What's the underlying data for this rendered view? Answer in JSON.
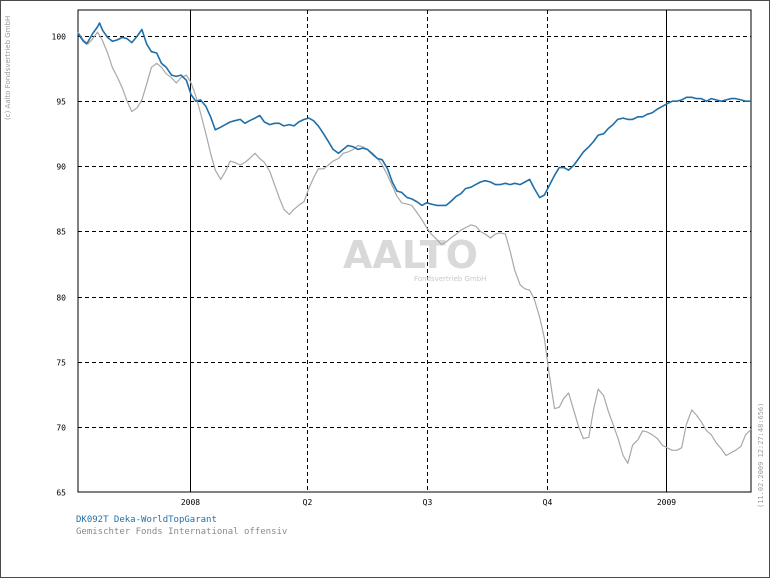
{
  "copyright_left": "(c) Aalto Fondsvertrieb GmbH",
  "timestamp_right": "(11.02.2009 12:27:48:656)",
  "watermark": {
    "logo": "AALTO",
    "sub": "Fondsvertrieb GmbH"
  },
  "legend": {
    "fund": "DK092T Deka-WorldTopGarant",
    "benchmark": "Gemischter Fonds International offensiv"
  },
  "colors": {
    "fund": "#1f6fa8",
    "benchmark": "#a8a8a8",
    "grid": "#000000"
  },
  "chart_data": {
    "type": "line",
    "title": "",
    "xlabel": "",
    "ylabel": "",
    "ylim": [
      65,
      102
    ],
    "yticks": [
      65,
      70,
      75,
      80,
      85,
      90,
      95,
      100
    ],
    "xlim": [
      0,
      100
    ],
    "xticks": [
      {
        "label": "2008",
        "x": 16.6
      },
      {
        "label": "Q2",
        "x": 34.0
      },
      {
        "label": "Q3",
        "x": 51.8
      },
      {
        "label": "Q4",
        "x": 69.7
      },
      {
        "label": "2009",
        "x": 87.4
      }
    ],
    "grid": true,
    "series": [
      {
        "name": "DK092T Deka-WorldTopGarant",
        "points": [
          [
            0,
            100.2
          ],
          [
            0.8,
            99.6
          ],
          [
            1.3,
            99.4
          ],
          [
            2.2,
            100.2
          ],
          [
            2.9,
            100.7
          ],
          [
            3.2,
            101.0
          ],
          [
            3.7,
            100.4
          ],
          [
            4.4,
            99.9
          ],
          [
            5.1,
            99.6
          ],
          [
            5.8,
            99.7
          ],
          [
            6.6,
            99.9
          ],
          [
            7.3,
            99.8
          ],
          [
            8.0,
            99.5
          ],
          [
            8.8,
            100.0
          ],
          [
            9.5,
            100.5
          ],
          [
            10.2,
            99.4
          ],
          [
            10.9,
            98.8
          ],
          [
            11.7,
            98.7
          ],
          [
            12.4,
            97.9
          ],
          [
            13.1,
            97.6
          ],
          [
            13.9,
            97.0
          ],
          [
            14.6,
            96.9
          ],
          [
            15.3,
            97.0
          ],
          [
            16.1,
            96.6
          ],
          [
            16.8,
            95.5
          ],
          [
            17.5,
            95.0
          ],
          [
            18.2,
            95.1
          ],
          [
            19.0,
            94.6
          ],
          [
            19.7,
            93.8
          ],
          [
            20.4,
            92.8
          ],
          [
            21.2,
            93.0
          ],
          [
            21.9,
            93.2
          ],
          [
            22.6,
            93.4
          ],
          [
            23.3,
            93.5
          ],
          [
            24.1,
            93.6
          ],
          [
            24.8,
            93.3
          ],
          [
            25.5,
            93.5
          ],
          [
            26.3,
            93.7
          ],
          [
            27.0,
            93.9
          ],
          [
            27.7,
            93.4
          ],
          [
            28.5,
            93.2
          ],
          [
            29.2,
            93.3
          ],
          [
            29.9,
            93.3
          ],
          [
            30.6,
            93.1
          ],
          [
            31.4,
            93.2
          ],
          [
            32.1,
            93.1
          ],
          [
            32.8,
            93.4
          ],
          [
            33.6,
            93.6
          ],
          [
            34.3,
            93.7
          ],
          [
            35.0,
            93.5
          ],
          [
            35.7,
            93.1
          ],
          [
            36.5,
            92.5
          ],
          [
            37.2,
            91.9
          ],
          [
            37.9,
            91.3
          ],
          [
            38.7,
            91.0
          ],
          [
            39.4,
            91.3
          ],
          [
            40.1,
            91.6
          ],
          [
            40.9,
            91.5
          ],
          [
            41.6,
            91.3
          ],
          [
            42.3,
            91.4
          ],
          [
            43.0,
            91.3
          ],
          [
            43.8,
            90.9
          ],
          [
            44.5,
            90.6
          ],
          [
            45.2,
            90.5
          ],
          [
            46.0,
            89.8
          ],
          [
            46.7,
            88.8
          ],
          [
            47.4,
            88.1
          ],
          [
            48.1,
            88.0
          ],
          [
            48.9,
            87.6
          ],
          [
            49.6,
            87.5
          ],
          [
            50.3,
            87.3
          ],
          [
            51.1,
            87.0
          ],
          [
            51.8,
            87.2
          ],
          [
            52.5,
            87.1
          ],
          [
            53.3,
            87.0
          ],
          [
            54.0,
            87.0
          ],
          [
            54.7,
            87.0
          ],
          [
            55.4,
            87.3
          ],
          [
            56.2,
            87.7
          ],
          [
            56.9,
            87.9
          ],
          [
            57.6,
            88.3
          ],
          [
            58.4,
            88.4
          ],
          [
            59.1,
            88.6
          ],
          [
            59.8,
            88.8
          ],
          [
            60.5,
            88.9
          ],
          [
            61.3,
            88.8
          ],
          [
            62.0,
            88.6
          ],
          [
            62.7,
            88.6
          ],
          [
            63.5,
            88.7
          ],
          [
            64.2,
            88.6
          ],
          [
            64.9,
            88.7
          ],
          [
            65.7,
            88.6
          ],
          [
            66.4,
            88.8
          ],
          [
            67.1,
            89.0
          ],
          [
            67.8,
            88.3
          ],
          [
            68.6,
            87.6
          ],
          [
            69.3,
            87.8
          ],
          [
            70.0,
            88.5
          ],
          [
            70.8,
            89.3
          ],
          [
            71.5,
            89.9
          ],
          [
            72.2,
            89.9
          ],
          [
            72.9,
            89.7
          ],
          [
            73.7,
            90.1
          ],
          [
            74.4,
            90.6
          ],
          [
            75.1,
            91.1
          ],
          [
            75.9,
            91.5
          ],
          [
            76.6,
            91.9
          ],
          [
            77.3,
            92.4
          ],
          [
            78.1,
            92.5
          ],
          [
            78.8,
            92.9
          ],
          [
            79.5,
            93.2
          ],
          [
            80.2,
            93.6
          ],
          [
            81.0,
            93.7
          ],
          [
            81.7,
            93.6
          ],
          [
            82.4,
            93.6
          ],
          [
            83.2,
            93.8
          ],
          [
            83.9,
            93.8
          ],
          [
            84.6,
            94.0
          ],
          [
            85.3,
            94.1
          ],
          [
            86.1,
            94.4
          ],
          [
            86.8,
            94.6
          ],
          [
            87.5,
            94.8
          ],
          [
            88.3,
            95.0
          ],
          [
            89.0,
            95.0
          ],
          [
            89.7,
            95.1
          ],
          [
            90.4,
            95.3
          ],
          [
            91.2,
            95.3
          ],
          [
            91.9,
            95.2
          ],
          [
            92.6,
            95.2
          ],
          [
            93.4,
            95.0
          ],
          [
            94.1,
            95.2
          ],
          [
            94.8,
            95.1
          ],
          [
            95.6,
            95.0
          ],
          [
            96.3,
            95.1
          ],
          [
            97.0,
            95.2
          ],
          [
            97.7,
            95.2
          ],
          [
            98.5,
            95.1
          ],
          [
            99.2,
            95.0
          ],
          [
            100,
            95.0
          ]
        ]
      },
      {
        "name": "Gemischter Fonds International offensiv",
        "points": [
          [
            0,
            100.3
          ],
          [
            0.8,
            99.7
          ],
          [
            1.5,
            99.4
          ],
          [
            2.2,
            99.8
          ],
          [
            2.9,
            100.3
          ],
          [
            3.6,
            99.7
          ],
          [
            4.4,
            98.7
          ],
          [
            5.1,
            97.6
          ],
          [
            5.8,
            96.9
          ],
          [
            6.6,
            96.0
          ],
          [
            7.3,
            95.0
          ],
          [
            8.0,
            94.2
          ],
          [
            8.8,
            94.5
          ],
          [
            9.5,
            95.1
          ],
          [
            10.2,
            96.3
          ],
          [
            10.9,
            97.6
          ],
          [
            11.7,
            97.9
          ],
          [
            12.4,
            97.6
          ],
          [
            13.1,
            97.1
          ],
          [
            13.9,
            96.8
          ],
          [
            14.6,
            96.4
          ],
          [
            15.3,
            96.8
          ],
          [
            16.1,
            97.0
          ],
          [
            16.8,
            96.4
          ],
          [
            17.5,
            95.4
          ],
          [
            18.2,
            94.1
          ],
          [
            19.0,
            92.5
          ],
          [
            19.7,
            91.0
          ],
          [
            20.4,
            89.7
          ],
          [
            21.2,
            89.0
          ],
          [
            21.9,
            89.6
          ],
          [
            22.6,
            90.4
          ],
          [
            23.3,
            90.3
          ],
          [
            24.1,
            90.1
          ],
          [
            24.8,
            90.3
          ],
          [
            25.5,
            90.6
          ],
          [
            26.3,
            91.0
          ],
          [
            27.0,
            90.6
          ],
          [
            27.7,
            90.3
          ],
          [
            28.5,
            89.6
          ],
          [
            29.2,
            88.6
          ],
          [
            29.9,
            87.6
          ],
          [
            30.6,
            86.7
          ],
          [
            31.4,
            86.3
          ],
          [
            32.1,
            86.7
          ],
          [
            32.8,
            87.0
          ],
          [
            33.6,
            87.3
          ],
          [
            34.3,
            88.3
          ],
          [
            35.0,
            89.1
          ],
          [
            35.7,
            89.8
          ],
          [
            36.5,
            89.8
          ],
          [
            37.2,
            90.1
          ],
          [
            37.9,
            90.4
          ],
          [
            38.7,
            90.6
          ],
          [
            39.4,
            91.0
          ],
          [
            40.1,
            91.1
          ],
          [
            40.9,
            91.3
          ],
          [
            41.6,
            91.6
          ],
          [
            42.3,
            91.5
          ],
          [
            43.0,
            91.3
          ],
          [
            43.8,
            91.0
          ],
          [
            44.5,
            90.6
          ],
          [
            45.2,
            90.1
          ],
          [
            46.0,
            89.3
          ],
          [
            46.7,
            88.5
          ],
          [
            47.4,
            87.7
          ],
          [
            48.1,
            87.2
          ],
          [
            48.9,
            87.1
          ],
          [
            49.6,
            87.0
          ],
          [
            50.3,
            86.5
          ],
          [
            51.1,
            85.9
          ],
          [
            51.8,
            85.3
          ],
          [
            52.5,
            84.8
          ],
          [
            53.3,
            84.4
          ],
          [
            54.0,
            84.0
          ],
          [
            54.7,
            84.2
          ],
          [
            55.4,
            84.5
          ],
          [
            56.2,
            84.8
          ],
          [
            56.9,
            85.1
          ],
          [
            57.6,
            85.3
          ],
          [
            58.4,
            85.5
          ],
          [
            59.1,
            85.4
          ],
          [
            59.8,
            85.0
          ],
          [
            60.5,
            84.8
          ],
          [
            61.3,
            84.5
          ],
          [
            62.0,
            84.8
          ],
          [
            62.7,
            84.9
          ],
          [
            63.5,
            84.8
          ],
          [
            64.2,
            83.5
          ],
          [
            64.9,
            82.0
          ],
          [
            65.7,
            80.9
          ],
          [
            66.4,
            80.6
          ],
          [
            67.1,
            80.5
          ],
          [
            67.8,
            79.8
          ],
          [
            68.6,
            78.4
          ],
          [
            69.3,
            76.8
          ],
          [
            70.0,
            74.1
          ],
          [
            70.8,
            71.4
          ],
          [
            71.5,
            71.5
          ],
          [
            72.2,
            72.2
          ],
          [
            72.9,
            72.6
          ],
          [
            73.7,
            71.2
          ],
          [
            74.4,
            70.0
          ],
          [
            75.1,
            69.1
          ],
          [
            75.9,
            69.2
          ],
          [
            76.6,
            71.3
          ],
          [
            77.3,
            72.9
          ],
          [
            78.1,
            72.4
          ],
          [
            78.8,
            71.2
          ],
          [
            79.5,
            70.2
          ],
          [
            80.2,
            69.2
          ],
          [
            81.0,
            67.8
          ],
          [
            81.7,
            67.2
          ],
          [
            82.4,
            68.6
          ],
          [
            83.2,
            69.0
          ],
          [
            83.9,
            69.7
          ],
          [
            84.6,
            69.6
          ],
          [
            85.3,
            69.4
          ],
          [
            86.1,
            69.1
          ],
          [
            86.8,
            68.6
          ],
          [
            87.5,
            68.4
          ],
          [
            88.3,
            68.2
          ],
          [
            89.0,
            68.2
          ],
          [
            89.7,
            68.4
          ],
          [
            90.4,
            70.2
          ],
          [
            91.2,
            71.3
          ],
          [
            91.9,
            70.9
          ],
          [
            92.6,
            70.4
          ],
          [
            93.4,
            69.7
          ],
          [
            94.1,
            69.4
          ],
          [
            94.8,
            68.8
          ],
          [
            95.6,
            68.3
          ],
          [
            96.3,
            67.8
          ],
          [
            97.0,
            68.0
          ],
          [
            97.7,
            68.2
          ],
          [
            98.5,
            68.5
          ],
          [
            99.2,
            69.4
          ],
          [
            100,
            69.8
          ]
        ]
      }
    ]
  }
}
